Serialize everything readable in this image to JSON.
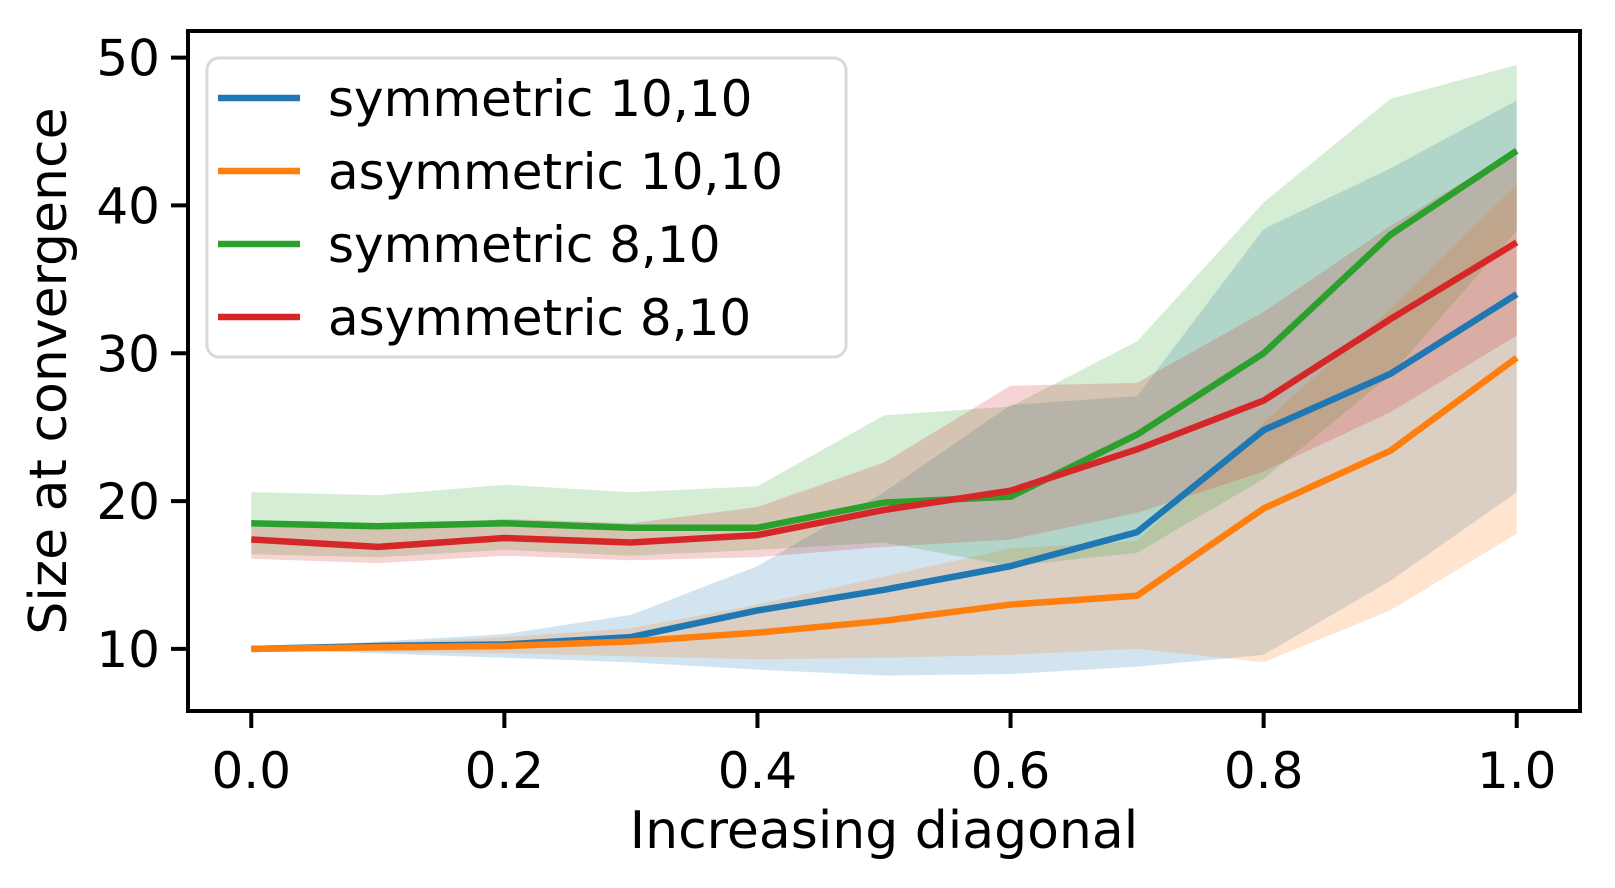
{
  "figure": {
    "background": "#ffffff",
    "spine_color": "#000000",
    "legend": {
      "position": "upper left",
      "border_color": "#d9d9d9",
      "background": "#ffffff"
    }
  },
  "chart_data": {
    "type": "line",
    "title": "",
    "xlabel": "Increasing diagonal",
    "ylabel": "Size at convergence",
    "grid": false,
    "legend_position": "upper left",
    "band_opacity": 0.2,
    "xlim": [
      -0.05,
      1.05
    ],
    "ylim": [
      5.8,
      51.8
    ],
    "x": [
      0.0,
      0.1,
      0.2,
      0.3,
      0.4,
      0.5,
      0.6,
      0.7,
      0.8,
      0.9,
      1.0
    ],
    "xticks": {
      "values": [
        0.0,
        0.2,
        0.4,
        0.6,
        0.8,
        1.0
      ],
      "labels": [
        "0.0",
        "0.2",
        "0.4",
        "0.6",
        "0.8",
        "1.0"
      ]
    },
    "yticks": {
      "values": [
        10,
        20,
        30,
        40,
        50
      ],
      "labels": [
        "10",
        "20",
        "30",
        "40",
        "50"
      ]
    },
    "series": [
      {
        "name": "symmetric 10,10",
        "color": "#1f77b4",
        "values": [
          10.0,
          10.2,
          10.3,
          10.8,
          12.6,
          14.0,
          15.6,
          17.9,
          24.8,
          28.6,
          34.0
        ],
        "band_lower": [
          10.0,
          9.7,
          9.4,
          9.1,
          8.6,
          8.2,
          8.3,
          8.8,
          9.6,
          14.6,
          20.6
        ],
        "band_upper": [
          10.0,
          10.5,
          11.0,
          12.3,
          15.6,
          20.6,
          26.5,
          27.1,
          38.4,
          42.5,
          47.1
        ]
      },
      {
        "name": "asymmetric 10,10",
        "color": "#ff7f0e",
        "values": [
          10.0,
          10.1,
          10.2,
          10.5,
          11.1,
          11.9,
          13.0,
          13.6,
          19.5,
          23.4,
          29.7
        ],
        "band_lower": [
          10.0,
          9.8,
          9.7,
          9.5,
          9.3,
          9.4,
          9.6,
          10.0,
          9.1,
          12.6,
          17.8
        ],
        "band_upper": [
          10.0,
          10.4,
          10.8,
          11.4,
          13.0,
          14.9,
          16.8,
          17.3,
          25.3,
          33.0,
          41.4
        ]
      },
      {
        "name": "symmetric 8,10",
        "color": "#2ca02c",
        "values": [
          18.5,
          18.3,
          18.5,
          18.2,
          18.2,
          19.9,
          20.3,
          24.5,
          30.0,
          38.0,
          43.7
        ],
        "band_lower": [
          16.4,
          16.2,
          16.7,
          16.3,
          16.7,
          17.2,
          15.6,
          16.5,
          21.5,
          28.5,
          38.3
        ],
        "band_upper": [
          20.6,
          20.4,
          21.1,
          20.6,
          21.0,
          25.8,
          26.4,
          30.8,
          40.2,
          47.2,
          49.5
        ]
      },
      {
        "name": "asymmetric 8,10",
        "color": "#d62728",
        "values": [
          17.4,
          16.9,
          17.5,
          17.2,
          17.7,
          19.4,
          20.7,
          23.5,
          26.8,
          32.3,
          37.5
        ],
        "band_lower": [
          16.1,
          15.8,
          16.3,
          16.0,
          16.2,
          16.9,
          17.4,
          19.2,
          22.0,
          26.0,
          31.2
        ],
        "band_upper": [
          18.7,
          18.1,
          18.8,
          18.5,
          19.6,
          22.6,
          27.8,
          28.0,
          32.8,
          38.6,
          43.8
        ]
      }
    ]
  }
}
